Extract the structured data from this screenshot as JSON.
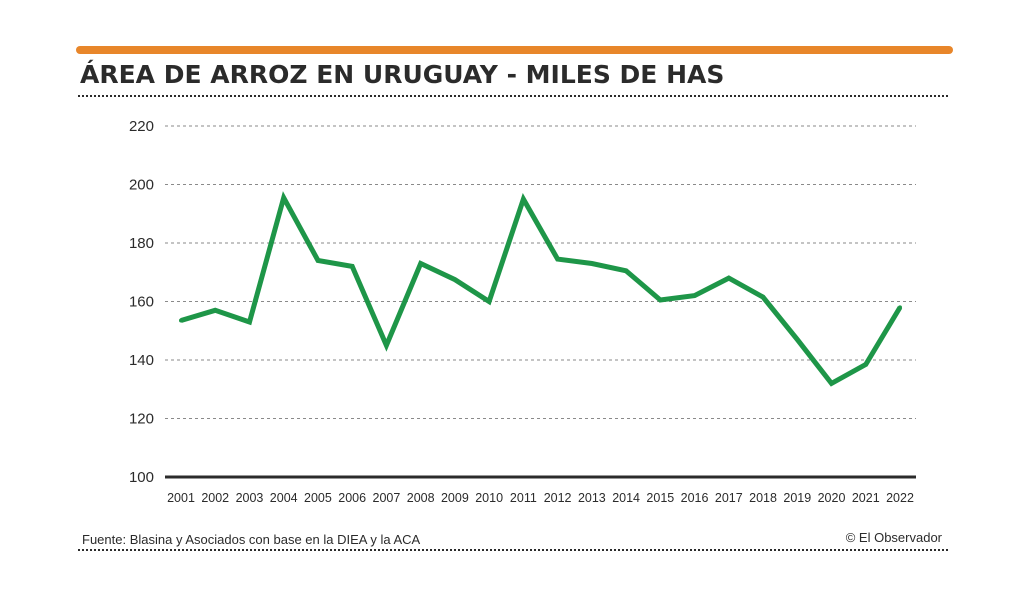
{
  "header": {
    "title": "ÁREA DE ARROZ EN URUGUAY - MILES DE HAS",
    "accent_color": "#e8862a"
  },
  "footer": {
    "source": "Fuente: Blasina y Asociados con base en la DIEA y la ACA",
    "credit": "© El Observador"
  },
  "chart_data": {
    "type": "line",
    "title": "ÁREA DE ARROZ EN URUGUAY - MILES DE HAS",
    "xlabel": "",
    "ylabel": "",
    "ylim": [
      100,
      220
    ],
    "yticks": [
      100,
      120,
      140,
      160,
      180,
      200,
      220
    ],
    "grid": true,
    "line_color": "#1e9648",
    "categories": [
      "2001",
      "2002",
      "2003",
      "2004",
      "2005",
      "2006",
      "2007",
      "2008",
      "2009",
      "2010",
      "2011",
      "2012",
      "2013",
      "2014",
      "2015",
      "2016",
      "2017",
      "2018",
      "2019",
      "2020",
      "2021",
      "2022"
    ],
    "series": [
      {
        "name": "Área de arroz (miles de has)",
        "values": [
          153.5,
          157,
          153,
          195.5,
          174,
          172,
          145,
          173,
          167.5,
          160,
          195,
          174.5,
          173,
          170.5,
          160.5,
          162,
          168,
          161.5,
          147,
          132,
          138.5,
          158
        ]
      }
    ]
  }
}
